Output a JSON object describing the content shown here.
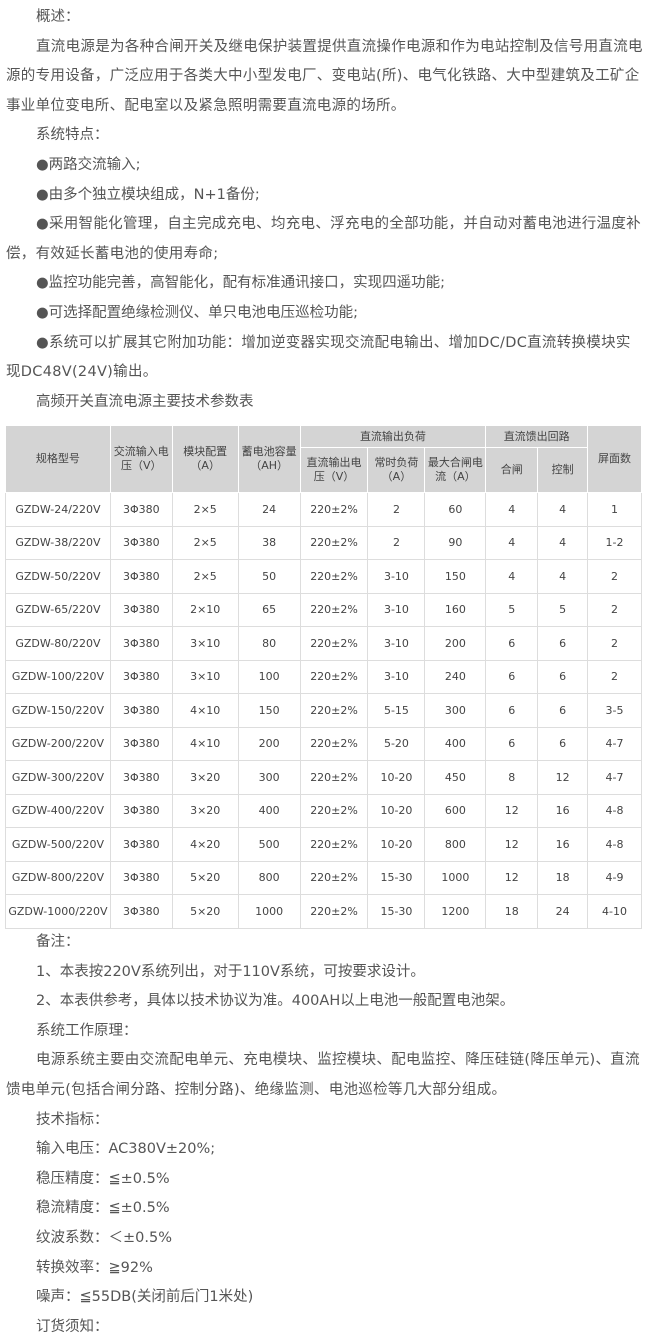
{
  "intro": {
    "overview_heading": "概述：",
    "overview_text": "直流电源是为各种合闸开关及继电保护装置提供直流操作电源和作为电站控制及信号用直流电源的专用设备，广泛应用于各类大中小型发电厂、变电站(所)、电气化铁路、大中型建筑及工矿企事业单位变电所、配电室以及紧急照明需要直流电源的场所。",
    "features_heading": "系统特点：",
    "features": [
      "●两路交流输入;",
      "●由多个独立模块组成，N+1备份;",
      "●采用智能化管理，自主完成充电、均充电、浮充电的全部功能，并自动对蓄电池进行温度补偿，有效延长蓄电池的使用寿命;",
      "●监控功能完善，高智能化，配有标准通讯接口，实现四遥功能;",
      "●可选择配置绝缘检测仪、单只电池电压巡检功能;",
      "●系统可以扩展其它附加功能：增加逆变器实现交流配电输出、增加DC/DC直流转换模块实现DC48V(24V)输出。"
    ],
    "table_title": "高频开关直流电源主要技术参数表"
  },
  "table": {
    "headers": {
      "model": "规格型号",
      "ac_input": "交流输入电压（V）",
      "module": "模块配置（A）",
      "battery": "蓄电池容量（AH）",
      "dc_load": "直流输出负荷",
      "dc_voltage": "直流输出电压（V）",
      "normal_load": "常时负荷（A）",
      "max_close": "最大合闸电流（A）",
      "feeder": "直流馈出回路",
      "close": "合闸",
      "control": "控制",
      "panels": "屏面数"
    },
    "rows": [
      [
        "GZDW-24/220V",
        "3Φ380",
        "2×5",
        "24",
        "220±2%",
        "2",
        "60",
        "4",
        "4",
        "1"
      ],
      [
        "GZDW-38/220V",
        "3Φ380",
        "2×5",
        "38",
        "220±2%",
        "2",
        "90",
        "4",
        "4",
        "1-2"
      ],
      [
        "GZDW-50/220V",
        "3Φ380",
        "2×5",
        "50",
        "220±2%",
        "3-10",
        "150",
        "4",
        "4",
        "2"
      ],
      [
        "GZDW-65/220V",
        "3Φ380",
        "2×10",
        "65",
        "220±2%",
        "3-10",
        "160",
        "5",
        "5",
        "2"
      ],
      [
        "GZDW-80/220V",
        "3Φ380",
        "3×10",
        "80",
        "220±2%",
        "3-10",
        "200",
        "6",
        "6",
        "2"
      ],
      [
        "GZDW-100/220V",
        "3Φ380",
        "3×10",
        "100",
        "220±2%",
        "3-10",
        "240",
        "6",
        "6",
        "2"
      ],
      [
        "GZDW-150/220V",
        "3Φ380",
        "4×10",
        "150",
        "220±2%",
        "5-15",
        "300",
        "6",
        "6",
        "3-5"
      ],
      [
        "GZDW-200/220V",
        "3Φ380",
        "4×10",
        "200",
        "220±2%",
        "5-20",
        "400",
        "6",
        "6",
        "4-7"
      ],
      [
        "GZDW-300/220V",
        "3Φ380",
        "3×20",
        "300",
        "220±2%",
        "10-20",
        "450",
        "8",
        "12",
        "4-7"
      ],
      [
        "GZDW-400/220V",
        "3Φ380",
        "3×20",
        "400",
        "220±2%",
        "10-20",
        "600",
        "12",
        "16",
        "4-8"
      ],
      [
        "GZDW-500/220V",
        "3Φ380",
        "4×20",
        "500",
        "220±2%",
        "10-20",
        "800",
        "12",
        "16",
        "4-8"
      ],
      [
        "GZDW-800/220V",
        "3Φ380",
        "5×20",
        "800",
        "220±2%",
        "15-30",
        "1000",
        "12",
        "18",
        "4-9"
      ],
      [
        "GZDW-1000/220V",
        "3Φ380",
        "5×20",
        "1000",
        "220±2%",
        "15-30",
        "1200",
        "18",
        "24",
        "4-10"
      ]
    ]
  },
  "notes": {
    "heading": "备注：",
    "items": [
      "1、本表按220V系统列出，对于110V系统，可按要求设计。",
      "2、本表供参考，具体以技术协议为准。400AH以上电池一般配置电池架。"
    ],
    "principle_heading": "系统工作原理：",
    "principle_text": "电源系统主要由交流配电单元、充电模块、监控模块、配电监控、降压硅链(降压单元)、直流馈电单元(包括合闸分路、控制分路)、绝缘监测、电池巡检等几大部分组成。",
    "specs_heading": "技术指标：",
    "specs": [
      "输入电压：AC380V±20%;",
      "稳压精度：≦±0.5%",
      "稳流精度：≦±0.5%",
      "纹波系数：＜±0.5%",
      "转换效率：≧92%",
      "噪声：≦55DB(关闭前后门1米处)"
    ],
    "order_heading": "订货须知："
  }
}
